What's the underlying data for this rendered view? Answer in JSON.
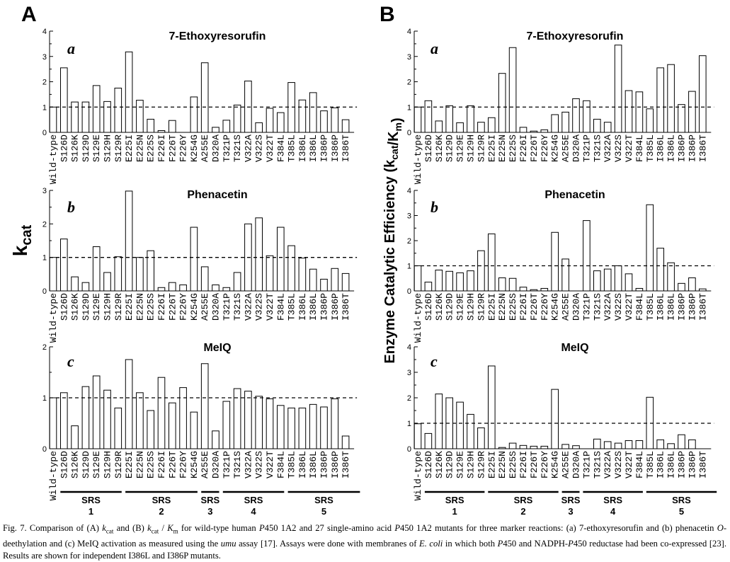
{
  "figure": {
    "panel_A_label": "A",
    "panel_B_label": "B",
    "ylabel_A": "kcat",
    "ylabel_B": "Enzyme Catalytic Efficiency (kcat/Km)",
    "srs_labels": [
      {
        "name": "SRS",
        "num": "1",
        "from": 2,
        "to": 7
      },
      {
        "name": "SRS",
        "num": "2",
        "from": 8,
        "to": 14
      },
      {
        "name": "SRS",
        "num": "3",
        "from": 15,
        "to": 16
      },
      {
        "name": "SRS",
        "num": "4",
        "from": 17,
        "to": 22
      },
      {
        "name": "SRS",
        "num": "5",
        "from": 23,
        "to": 29
      }
    ],
    "caption_segments": [
      {
        "t": "Fig. 7. Comparison of (A) "
      },
      {
        "t": "k",
        "i": true
      },
      {
        "t": "cat",
        "sub": true
      },
      {
        "t": " and (B) "
      },
      {
        "t": "k",
        "i": true
      },
      {
        "t": "cat",
        "sub": true
      },
      {
        "t": " / "
      },
      {
        "t": "K",
        "i": true
      },
      {
        "t": "m",
        "sub": true
      },
      {
        "t": " for wild-type human "
      },
      {
        "t": "P",
        "i": true
      },
      {
        "t": "450 1A2 and 27 single-amino acid "
      },
      {
        "t": "P",
        "i": true
      },
      {
        "t": "450 1A2 mutants for three marker reactions: (a) 7-ethoxyresorufin and (b) phenacetin "
      },
      {
        "t": "O",
        "i": true
      },
      {
        "t": "-deethylation and (c) MeIQ activation as measured using the "
      },
      {
        "t": "umu",
        "i": true
      },
      {
        "t": " assay [17]. Assays were done with membranes of "
      },
      {
        "t": "E. coli",
        "i": true
      },
      {
        "t": " in which both "
      },
      {
        "t": "P",
        "i": true
      },
      {
        "t": "450 and NADPH-"
      },
      {
        "t": "P",
        "i": true
      },
      {
        "t": "450 reductase had been co-expressed [23]. Results are shown for independent I386L and I386P mutants."
      }
    ]
  },
  "chart_data": [
    {
      "id": "A-a",
      "panel": "A",
      "letter": "a",
      "type": "bar",
      "title": "7-Ethoxyresorufin",
      "ylim": [
        0,
        4
      ],
      "yticks": [
        "0",
        "1",
        "2",
        "3",
        "4"
      ],
      "reference_line": 1,
      "categories": [
        "Wild-type",
        "S126D",
        "S126K",
        "S129D",
        "S129E",
        "S129H",
        "S129R",
        "E225I",
        "E225N",
        "E225S",
        "F226I",
        "F226T",
        "F226Y",
        "K254G",
        "A255E",
        "D320A",
        "T321P",
        "T321S",
        "V322A",
        "V322S",
        "V322T",
        "F384L",
        "T385L",
        "I386L",
        "I386L",
        "I386P",
        "I386P",
        "I386T"
      ],
      "values": [
        1.0,
        2.55,
        1.2,
        1.2,
        1.85,
        1.22,
        1.75,
        3.18,
        1.27,
        0.52,
        0.07,
        0.47,
        0.0,
        1.4,
        2.75,
        0.2,
        0.48,
        1.08,
        2.03,
        0.38,
        0.95,
        0.78,
        1.97,
        1.28,
        1.57,
        0.85,
        0.97,
        0.5
      ]
    },
    {
      "id": "A-b",
      "panel": "A",
      "letter": "b",
      "type": "bar",
      "title": "Phenacetin",
      "ylim": [
        0,
        3
      ],
      "yticks": [
        "0",
        "1",
        "2",
        "3"
      ],
      "reference_line": 1,
      "categories": [
        "Wild-type",
        "S126D",
        "S126K",
        "S129D",
        "S129E",
        "S129H",
        "S129R",
        "E225I",
        "E225N",
        "E225S",
        "F226I",
        "F226T",
        "F226Y",
        "K254G",
        "A255E",
        "D320A",
        "T321P",
        "T321S",
        "V322A",
        "V322S",
        "V322T",
        "F384L",
        "T385L",
        "I386L",
        "I386L",
        "I386P",
        "I386P",
        "I386T"
      ],
      "values": [
        1.0,
        1.55,
        0.42,
        0.25,
        1.32,
        0.55,
        1.02,
        2.98,
        1.0,
        1.2,
        0.1,
        0.25,
        0.18,
        1.9,
        0.72,
        0.18,
        0.1,
        0.55,
        2.0,
        2.18,
        1.05,
        1.9,
        1.35,
        0.98,
        0.65,
        0.35,
        0.67,
        0.52
      ]
    },
    {
      "id": "A-c",
      "panel": "A",
      "letter": "c",
      "type": "bar",
      "title": "MeIQ",
      "ylim": [
        0,
        2
      ],
      "yticks": [
        "0",
        "1",
        "2"
      ],
      "reference_line": 1,
      "categories": [
        "Wild-type",
        "S126D",
        "S126K",
        "S129D",
        "S129E",
        "S129H",
        "S129R",
        "E225I",
        "E225N",
        "E225S",
        "F226I",
        "F226T",
        "F226Y",
        "K254G",
        "A255E",
        "D320A",
        "T321P",
        "T321S",
        "V322A",
        "V322S",
        "V322T",
        "F384L",
        "T385L",
        "I386L",
        "I386L",
        "I386P",
        "I386P",
        "I386T"
      ],
      "values": [
        1.0,
        1.1,
        0.45,
        1.22,
        1.43,
        1.15,
        0.8,
        1.75,
        1.1,
        0.75,
        1.4,
        0.9,
        1.2,
        0.72,
        1.67,
        0.35,
        0.93,
        1.18,
        1.13,
        1.03,
        0.98,
        0.85,
        0.8,
        0.8,
        0.87,
        0.82,
        0.98,
        0.25
      ]
    },
    {
      "id": "B-a",
      "panel": "B",
      "letter": "a",
      "type": "bar",
      "title": "7-Ethoxyresorufin",
      "ylim": [
        0,
        4
      ],
      "yticks": [
        "0",
        "1",
        "2",
        "3",
        "4"
      ],
      "reference_line": 1,
      "categories": [
        "Wild-type",
        "S126D",
        "S126K",
        "S129D",
        "S129E",
        "S129H",
        "S129R",
        "E225I",
        "E225N",
        "E225S",
        "F226I",
        "F226T",
        "F226Y",
        "K254G",
        "A255E",
        "D320A",
        "T321P",
        "T321S",
        "V322A",
        "V322S",
        "V322T",
        "F384L",
        "T385L",
        "I386L",
        "I386L",
        "I386P",
        "I386P",
        "I386T"
      ],
      "values": [
        1.0,
        1.25,
        0.45,
        1.05,
        0.38,
        1.05,
        0.4,
        0.58,
        2.33,
        3.35,
        0.2,
        0.05,
        0.1,
        0.7,
        0.8,
        1.33,
        1.25,
        0.52,
        0.4,
        3.45,
        1.65,
        1.6,
        0.93,
        2.55,
        2.68,
        1.1,
        1.62,
        3.03
      ]
    },
    {
      "id": "B-b",
      "panel": "B",
      "letter": "b",
      "type": "bar",
      "title": "Phenacetin",
      "ylim": [
        0,
        4
      ],
      "yticks": [
        "0",
        "1",
        "2",
        "3",
        "4"
      ],
      "reference_line": 1,
      "categories": [
        "Wild-type",
        "S126D",
        "S126K",
        "S129D",
        "S129E",
        "S129H",
        "S129R",
        "E225I",
        "E225N",
        "E225S",
        "F226I",
        "F226T",
        "F226Y",
        "K254G",
        "A255E",
        "D320A",
        "T321P",
        "T321S",
        "V322A",
        "V322S",
        "V322T",
        "F384L",
        "T385L",
        "I386L",
        "I386L",
        "I386P",
        "I386P",
        "I386T"
      ],
      "values": [
        1.0,
        0.35,
        0.83,
        0.78,
        0.72,
        0.8,
        1.6,
        2.27,
        0.52,
        0.5,
        0.15,
        0.05,
        0.1,
        2.33,
        1.27,
        0.0,
        2.8,
        0.8,
        0.87,
        1.0,
        0.68,
        0.1,
        3.43,
        1.7,
        1.12,
        0.3,
        0.52,
        0.08
      ]
    },
    {
      "id": "B-c",
      "panel": "B",
      "letter": "c",
      "type": "bar",
      "title": "MeIQ",
      "ylim": [
        0,
        4
      ],
      "yticks": [
        "0",
        "1",
        "2",
        "3",
        "4"
      ],
      "reference_line": 1,
      "categories": [
        "Wild-type",
        "S126D",
        "S126K",
        "S129D",
        "S129E",
        "S129H",
        "S129R",
        "E225I",
        "E225N",
        "E225S",
        "F226I",
        "F226T",
        "F226Y",
        "K254G",
        "A255E",
        "D320A",
        "T321P",
        "T321S",
        "V322A",
        "V322S",
        "V322T",
        "F384L",
        "T385L",
        "I386L",
        "I386L",
        "I386P",
        "I386P",
        "I386T"
      ],
      "values": [
        0.98,
        0.6,
        2.15,
        2.0,
        1.83,
        1.35,
        0.82,
        3.25,
        0.05,
        0.22,
        0.13,
        0.1,
        0.1,
        2.33,
        0.17,
        0.12,
        0.0,
        0.38,
        0.28,
        0.22,
        0.32,
        0.32,
        2.02,
        0.35,
        0.2,
        0.55,
        0.35,
        0.0
      ]
    }
  ]
}
